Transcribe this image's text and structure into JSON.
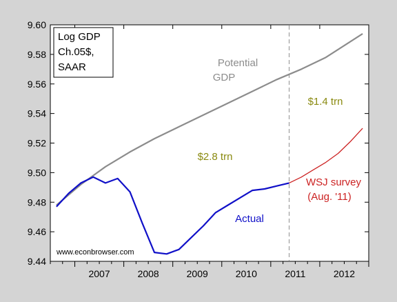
{
  "chart_data": {
    "type": "line",
    "legend_box": {
      "lines": [
        "Log GDP",
        "Ch.05$,",
        "SAAR"
      ],
      "placement": "top-left"
    },
    "watermark": "www.econbrowser.com",
    "x_tick_labels": [
      "2007",
      "2008",
      "2009",
      "2010",
      "2011",
      "2012"
    ],
    "xlim": [
      2006.5,
      2013.0
    ],
    "ylim": [
      9.44,
      9.6
    ],
    "y_ticks": [
      9.44,
      9.46,
      9.48,
      9.5,
      9.52,
      9.54,
      9.56,
      9.58,
      9.6
    ],
    "y_tick_labels": [
      "9.44",
      "9.46",
      "9.48",
      "9.50",
      "9.52",
      "9.54",
      "9.56",
      "9.58",
      "9.60"
    ],
    "vertical_marker": {
      "x": 2011.375,
      "style": "dashed"
    },
    "series": [
      {
        "label": "Potential GDP",
        "label_lines": [
          "Potential",
          "GDP"
        ],
        "color": "#8c8c8c",
        "x": [
          2006.625,
          2007.125,
          2007.625,
          2008.125,
          2008.625,
          2009.125,
          2009.625,
          2010.125,
          2010.625,
          2011.125,
          2011.625,
          2012.125,
          2012.875
        ],
        "y": [
          9.478,
          9.492,
          9.504,
          9.514,
          9.523,
          9.531,
          9.539,
          9.547,
          9.555,
          9.563,
          9.57,
          9.578,
          9.594
        ]
      },
      {
        "label": "Actual",
        "label_lines": [
          "Actual"
        ],
        "color": "#1010c8",
        "x": [
          2006.625,
          2006.875,
          2007.125,
          2007.375,
          2007.625,
          2007.875,
          2008.125,
          2008.375,
          2008.625,
          2008.875,
          2009.125,
          2009.375,
          2009.625,
          2009.875,
          2010.125,
          2010.375,
          2010.625,
          2010.875,
          2011.125,
          2011.375
        ],
        "y": [
          9.477,
          9.486,
          9.493,
          9.497,
          9.493,
          9.496,
          9.487,
          9.466,
          9.446,
          9.445,
          9.448,
          9.456,
          9.464,
          9.473,
          9.478,
          9.483,
          9.488,
          9.489,
          9.491,
          9.493
        ]
      },
      {
        "label": "WSJ survey (Aug. '11)",
        "label_lines": [
          "WSJ survey",
          "(Aug. '11)"
        ],
        "color": "#cc2222",
        "x": [
          2011.375,
          2011.625,
          2011.875,
          2012.125,
          2012.375,
          2012.625,
          2012.875
        ],
        "y": [
          9.493,
          9.497,
          9.502,
          9.507,
          9.513,
          9.521,
          9.53
        ]
      }
    ],
    "annotations": [
      {
        "text": "$2.8 trn",
        "color": "#8a8a10"
      },
      {
        "text": "$1.4 trn",
        "color": "#8a8a10"
      }
    ]
  }
}
